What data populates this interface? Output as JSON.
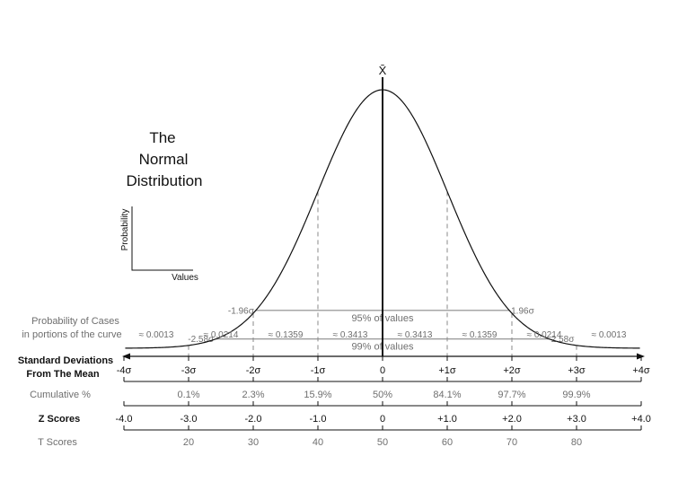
{
  "title_lines": [
    "The",
    "Normal",
    "Distribution"
  ],
  "mean_symbol": "X̄",
  "mini_axes": {
    "y_label": "Probability",
    "x_label": "Values"
  },
  "bands": [
    {
      "left_label": "-1.96σ",
      "right_label": "1.96σ",
      "center_label": "95% of values",
      "z": 1.96
    },
    {
      "left_label": "-2.58σ",
      "right_label": "2.58σ",
      "center_label": "99% of values",
      "z": 2.58
    }
  ],
  "portions": {
    "row_label_lines": [
      "Probability of Cases",
      "in portions of the curve"
    ],
    "values": [
      "≈ 0.0013",
      "≈ 0.0214",
      "≈ 0.1359",
      "≈ 0.3413",
      "≈ 0.3413",
      "≈ 0.1359",
      "≈ 0.0214",
      "≈ 0.0013"
    ]
  },
  "rows": {
    "sd": {
      "label_lines": [
        "Standard Deviations",
        "From The Mean"
      ],
      "ticks": [
        "-4σ",
        "-3σ",
        "-2σ",
        "-1σ",
        "0",
        "+1σ",
        "+2σ",
        "+3σ",
        "+4σ"
      ]
    },
    "cumulative": {
      "label": "Cumulative %",
      "ticks": [
        "",
        "0.1%",
        "2.3%",
        "15.9%",
        "50%",
        "84.1%",
        "97.7%",
        "99.9%",
        ""
      ]
    },
    "z": {
      "label": "Z Scores",
      "ticks": [
        "-4.0",
        "-3.0",
        "-2.0",
        "-1.0",
        "0",
        "+1.0",
        "+2.0",
        "+3.0",
        "+4.0"
      ]
    },
    "t": {
      "label": "T Scores",
      "ticks": [
        "",
        "20",
        "30",
        "40",
        "50",
        "60",
        "70",
        "80",
        ""
      ]
    }
  },
  "sd_positions": [
    -4,
    -3,
    -2,
    -1,
    0,
    1,
    2,
    3,
    4
  ]
}
